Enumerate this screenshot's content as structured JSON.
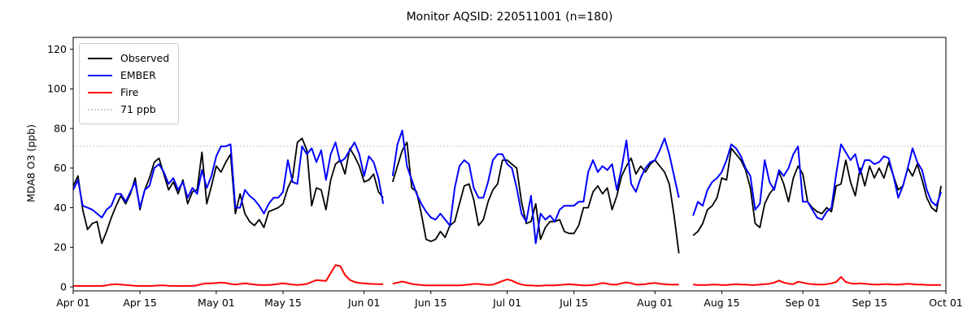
{
  "title": "Monitor AQSID: 220511001 (n=180)",
  "ylabel": "MDA8 O3 (ppb)",
  "legend": {
    "observed_label": "Observed",
    "ember_label": "EMBER",
    "fire_label": "Fire",
    "threshold_label": "71 ppb"
  },
  "colors": {
    "observed": "#000000",
    "ember": "#0000ff",
    "fire": "#ff0000",
    "threshold": "#c8c8c8",
    "spine": "#000000"
  },
  "chart_data": {
    "type": "line",
    "title": "Monitor AQSID: 220511001 (n=180)",
    "xlabel": "",
    "ylabel": "MDA8 O3 (ppb)",
    "ylim": [
      -2,
      126
    ],
    "yticks": [
      0,
      20,
      40,
      60,
      80,
      100,
      120
    ],
    "grid": false,
    "legend_position": "upper-left",
    "threshold": {
      "value": 71,
      "label": "71 ppb"
    },
    "x_range_days": 183,
    "xticks": [
      {
        "label": "Apr 01",
        "day": 0
      },
      {
        "label": "Apr 15",
        "day": 14
      },
      {
        "label": "May 01",
        "day": 30
      },
      {
        "label": "May 15",
        "day": 44
      },
      {
        "label": "Jun 01",
        "day": 61
      },
      {
        "label": "Jun 15",
        "day": 75
      },
      {
        "label": "Jul 01",
        "day": 91
      },
      {
        "label": "Jul 15",
        "day": 105
      },
      {
        "label": "Aug 01",
        "day": 122
      },
      {
        "label": "Aug 15",
        "day": 136
      },
      {
        "label": "Sep 01",
        "day": 153
      },
      {
        "label": "Sep 15",
        "day": 167
      },
      {
        "label": "Oct 01",
        "day": 183
      }
    ],
    "series": [
      {
        "name": "Observed",
        "color": "#000000",
        "width": 1.8,
        "values": [
          51,
          56,
          39,
          29,
          32,
          33,
          22,
          28,
          35,
          41,
          46,
          42,
          47,
          55,
          39,
          49,
          55,
          63,
          65,
          57,
          49,
          53,
          47,
          54,
          42,
          48,
          49,
          68,
          42,
          51,
          61,
          58,
          63,
          67,
          37,
          47,
          37,
          33,
          31,
          34,
          30,
          38,
          39,
          40,
          42,
          50,
          55,
          73,
          75,
          69,
          41,
          50,
          49,
          39,
          54,
          62,
          64,
          57,
          70,
          66,
          61,
          53,
          54,
          57,
          48,
          45,
          null,
          53,
          61,
          69,
          73,
          50,
          48,
          37,
          24,
          23,
          24,
          28,
          25,
          31,
          33,
          42,
          51,
          52,
          44,
          31,
          34,
          43,
          49,
          52,
          64,
          64,
          62,
          60,
          43,
          32,
          33,
          42,
          24,
          30,
          33,
          33,
          34,
          28,
          27,
          27,
          31,
          40,
          40,
          48,
          51,
          47,
          50,
          39,
          46,
          56,
          61,
          65,
          57,
          61,
          58,
          62,
          64,
          61,
          58,
          52,
          36,
          17,
          null,
          null,
          26,
          28,
          32,
          39,
          41,
          45,
          55,
          54,
          70,
          67,
          64,
          59,
          50,
          32,
          30,
          42,
          47,
          50,
          58,
          52,
          43,
          55,
          61,
          57,
          43,
          40,
          38,
          37,
          40,
          38,
          51,
          52,
          64,
          53,
          46,
          60,
          51,
          61,
          55,
          60,
          55,
          63,
          56,
          49,
          51,
          60,
          56,
          62,
          54,
          45,
          40,
          38,
          51
        ]
      },
      {
        "name": "EMBER",
        "color": "#0000ff",
        "width": 2.0,
        "values": [
          49,
          54,
          41,
          40,
          39,
          37,
          35,
          39,
          41,
          47,
          47,
          43,
          48,
          53,
          40,
          49,
          51,
          60,
          62,
          58,
          52,
          55,
          49,
          53,
          45,
          50,
          47,
          59,
          50,
          56,
          66,
          71,
          71,
          72,
          40,
          40,
          49,
          46,
          44,
          41,
          37,
          42,
          45,
          45,
          48,
          64,
          53,
          52,
          71,
          67,
          70,
          63,
          69,
          54,
          67,
          73,
          63,
          65,
          69,
          73,
          67,
          56,
          66,
          63,
          55,
          42,
          null,
          56,
          72,
          79,
          61,
          54,
          47,
          42,
          38,
          35,
          34,
          37,
          34,
          31,
          50,
          61,
          64,
          62,
          50,
          45,
          45,
          53,
          64,
          67,
          67,
          62,
          60,
          50,
          37,
          33,
          46,
          22,
          37,
          34,
          36,
          33,
          39,
          41,
          41,
          41,
          43,
          43,
          58,
          64,
          58,
          61,
          59,
          62,
          49,
          60,
          74,
          52,
          48,
          55,
          60,
          63,
          64,
          69,
          75,
          67,
          56,
          45,
          null,
          null,
          36,
          43,
          41,
          49,
          53,
          55,
          58,
          64,
          72,
          70,
          66,
          60,
          56,
          39,
          42,
          64,
          53,
          49,
          59,
          56,
          60,
          67,
          71,
          43,
          43,
          39,
          35,
          34,
          38,
          40,
          57,
          72,
          68,
          64,
          67,
          57,
          64,
          64,
          62,
          63,
          66,
          65,
          56,
          45,
          51,
          60,
          70,
          63,
          59,
          49,
          43,
          41,
          48
        ]
      },
      {
        "name": "Fire",
        "color": "#ff0000",
        "width": 2.0,
        "values": [
          0.5,
          0.5,
          0.5,
          0.5,
          0.5,
          0.5,
          0.5,
          0.8,
          1.2,
          1.4,
          1.2,
          1.0,
          0.8,
          0.6,
          0.5,
          0.5,
          0.5,
          0.6,
          0.8,
          0.8,
          0.6,
          0.5,
          0.5,
          0.5,
          0.5,
          0.6,
          0.8,
          1.5,
          1.8,
          1.8,
          2.0,
          2.2,
          2.0,
          1.5,
          1.2,
          1.5,
          1.8,
          1.5,
          1.2,
          1.0,
          1.0,
          1.0,
          1.2,
          1.5,
          1.8,
          1.5,
          1.2,
          1.0,
          1.2,
          1.5,
          2.5,
          3.4,
          3.2,
          3.0,
          7.0,
          11.0,
          10.5,
          6.0,
          3.5,
          2.5,
          2.0,
          1.8,
          1.6,
          1.5,
          1.4,
          1.4,
          null,
          1.6,
          2.2,
          2.7,
          2.2,
          1.5,
          1.2,
          1.0,
          0.8,
          0.8,
          0.8,
          0.8,
          0.8,
          0.8,
          0.8,
          0.8,
          1.0,
          1.2,
          1.5,
          1.5,
          1.2,
          1.0,
          1.2,
          2.0,
          3.0,
          3.8,
          3.2,
          2.0,
          1.2,
          0.8,
          0.8,
          0.6,
          0.6,
          0.8,
          0.8,
          0.8,
          1.0,
          1.2,
          1.4,
          1.2,
          1.0,
          0.8,
          0.8,
          1.0,
          1.4,
          2.0,
          1.6,
          1.2,
          1.2,
          1.8,
          2.3,
          1.8,
          1.2,
          1.2,
          1.4,
          1.8,
          2.0,
          1.6,
          1.4,
          1.2,
          1.2,
          1.2,
          null,
          null,
          1.2,
          1.0,
          1.0,
          1.0,
          1.2,
          1.2,
          1.0,
          1.0,
          1.2,
          1.4,
          1.2,
          1.2,
          1.0,
          1.0,
          1.2,
          1.4,
          1.6,
          2.2,
          3.2,
          2.2,
          1.6,
          1.4,
          2.6,
          2.2,
          1.6,
          1.4,
          1.2,
          1.2,
          1.4,
          1.8,
          2.5,
          5.0,
          2.5,
          1.8,
          1.6,
          1.8,
          1.6,
          1.4,
          1.2,
          1.2,
          1.4,
          1.4,
          1.2,
          1.2,
          1.4,
          1.6,
          1.4,
          1.2,
          1.2,
          1.0,
          1.0,
          1.0,
          1.0
        ]
      }
    ]
  }
}
